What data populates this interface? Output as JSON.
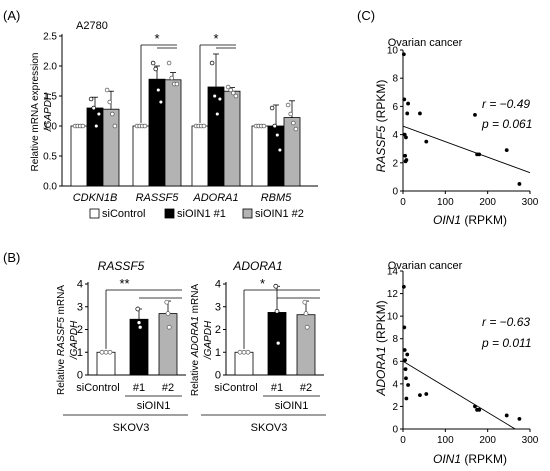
{
  "panel_labels": {
    "a": "(A)",
    "b": "(B)",
    "c": "(C)"
  },
  "legend": {
    "control": "siControl",
    "oin1_1": "siOIN1 #1",
    "oin1_2": "siOIN1 #2"
  },
  "colors": {
    "control": "#ffffff",
    "oin1_1": "#000000",
    "oin1_2": "#b3b3b3",
    "axis": "#000000"
  },
  "chart_data": [
    {
      "id": "A",
      "type": "bar",
      "subtitle": "A2780",
      "ylabel_1": "Relative mRNA expression",
      "ylabel_2": "/GAPDH",
      "ylim": [
        0,
        2.5
      ],
      "yticks": [
        "0.0",
        "0.5",
        "1.0",
        "1.5",
        "2.0",
        "2.5"
      ],
      "categories": [
        "CDKN1B",
        "RASSF5",
        "ADORA1",
        "RBM5"
      ],
      "series": [
        {
          "name": "siControl",
          "values": [
            1.0,
            1.0,
            1.0,
            1.0
          ],
          "errors": [
            0.0,
            0.0,
            0.0,
            0.0
          ],
          "points": [
            [
              1.0,
              1.0,
              1.0,
              1.0
            ],
            [
              1.0,
              1.0,
              1.0,
              1.0
            ],
            [
              1.0,
              1.0,
              1.0,
              1.0
            ],
            [
              1.0,
              1.0,
              1.0,
              1.0
            ]
          ]
        },
        {
          "name": "siOIN1 #1",
          "values": [
            1.3,
            1.78,
            1.65,
            1.0
          ],
          "errors": [
            0.18,
            0.22,
            0.55,
            0.35
          ],
          "points": [
            [
              1.45,
              1.3,
              1.0,
              1.2
            ],
            [
              2.05,
              1.95,
              1.6,
              1.4
            ],
            [
              2.05,
              1.5,
              1.2,
              1.45
            ],
            [
              1.3,
              1.0,
              0.85,
              0.6
            ]
          ]
        },
        {
          "name": "siOIN1 #2",
          "values": [
            1.28,
            1.77,
            1.58,
            1.14
          ],
          "errors": [
            0.3,
            0.12,
            0.06,
            0.28
          ],
          "points": [
            [
              1.6,
              1.4,
              1.2,
              1.0
            ],
            [
              2.05,
              1.8,
              1.7,
              1.7
            ],
            [
              1.65,
              1.6,
              1.55,
              1.5
            ],
            [
              1.35,
              1.2,
              1.05,
              0.95
            ]
          ]
        }
      ],
      "significance": [
        {
          "category": "RASSF5",
          "label": "*"
        },
        {
          "category": "ADORA1",
          "label": "*"
        }
      ]
    },
    {
      "id": "B1",
      "type": "bar",
      "title": "RASSF5",
      "ylabel_1": "Relative RASSF5 mRNA",
      "ylabel_2": "/GAPDH",
      "ylim": [
        0,
        4
      ],
      "yticks": [
        "0",
        "1",
        "2",
        "3",
        "4"
      ],
      "categories": [
        "siControl",
        "#1",
        "#2"
      ],
      "group_label": "siOIN1",
      "cell_line": "SKOV3",
      "values": [
        1.0,
        2.45,
        2.7
      ],
      "errors": [
        0.0,
        0.45,
        0.55
      ],
      "points": [
        [
          1.0,
          1.0,
          1.0
        ],
        [
          2.9,
          2.3,
          2.1
        ],
        [
          3.2,
          2.7,
          2.1
        ]
      ],
      "significance": "**"
    },
    {
      "id": "B2",
      "type": "bar",
      "title": "ADORA1",
      "ylabel_1": "Relative ADORA1 mRNA",
      "ylabel_2": "/GAPDH",
      "ylim": [
        0,
        4
      ],
      "yticks": [
        "0",
        "1",
        "2",
        "3",
        "4"
      ],
      "categories": [
        "siControl",
        "#1",
        "#2"
      ],
      "group_label": "siOIN1",
      "cell_line": "SKOV3",
      "values": [
        1.0,
        2.75,
        2.65
      ],
      "errors": [
        0.0,
        1.15,
        0.6
      ],
      "points": [
        [
          1.0,
          1.0,
          1.0
        ],
        [
          3.9,
          2.8,
          1.4
        ],
        [
          3.2,
          2.7,
          2.1
        ]
      ],
      "significance": "*"
    },
    {
      "id": "C1",
      "type": "scatter",
      "title": "Ovarian cancer",
      "xlabel_gene": "OIN1",
      "xlabel_unit": " (RPKM)",
      "ylabel_gene": "RASSF5",
      "ylabel_unit": " (RPKM)",
      "xlim": [
        0,
        300
      ],
      "ylim": [
        0,
        10
      ],
      "xticks": [
        "0",
        "100",
        "200",
        "300"
      ],
      "yticks": [
        "0",
        "2",
        "4",
        "6",
        "8",
        "10"
      ],
      "r_text": "r = −0.49",
      "p_text": "p = 0.061",
      "points": [
        [
          2,
          9.7
        ],
        [
          3,
          6.5
        ],
        [
          4,
          4.0
        ],
        [
          5,
          2.5
        ],
        [
          6,
          2.1
        ],
        [
          7,
          3.8
        ],
        [
          8,
          2.2
        ],
        [
          10,
          5.5
        ],
        [
          12,
          6.2
        ],
        [
          40,
          5.5
        ],
        [
          55,
          3.5
        ],
        [
          170,
          5.4
        ],
        [
          175,
          2.6
        ],
        [
          180,
          2.6
        ],
        [
          245,
          2.9
        ],
        [
          275,
          0.5
        ]
      ],
      "trend": [
        [
          0,
          4.6
        ],
        [
          300,
          1.3
        ]
      ]
    },
    {
      "id": "C2",
      "type": "scatter",
      "title": "Ovarian cancer",
      "xlabel_gene": "OIN1",
      "xlabel_unit": " (RPKM)",
      "ylabel_gene": "ADORA1",
      "ylabel_unit": " (RPKM)",
      "xlim": [
        0,
        300
      ],
      "ylim": [
        0,
        14
      ],
      "xticks": [
        "0",
        "100",
        "200",
        "300"
      ],
      "yticks": [
        "0",
        "2",
        "4",
        "6",
        "8",
        "10",
        "12",
        "14"
      ],
      "r_text": "r = −0.63",
      "p_text": "p = 0.011",
      "points": [
        [
          2,
          12.6
        ],
        [
          3,
          9.0
        ],
        [
          4,
          7.0
        ],
        [
          5,
          6.1
        ],
        [
          6,
          5.3
        ],
        [
          7,
          4.5
        ],
        [
          8,
          2.7
        ],
        [
          10,
          6.6
        ],
        [
          12,
          3.9
        ],
        [
          40,
          3.0
        ],
        [
          55,
          3.1
        ],
        [
          170,
          2.0
        ],
        [
          175,
          1.7
        ],
        [
          180,
          1.7
        ],
        [
          245,
          1.2
        ],
        [
          275,
          0.9
        ]
      ],
      "trend": [
        [
          0,
          6.0
        ],
        [
          265,
          0.0
        ]
      ]
    }
  ]
}
